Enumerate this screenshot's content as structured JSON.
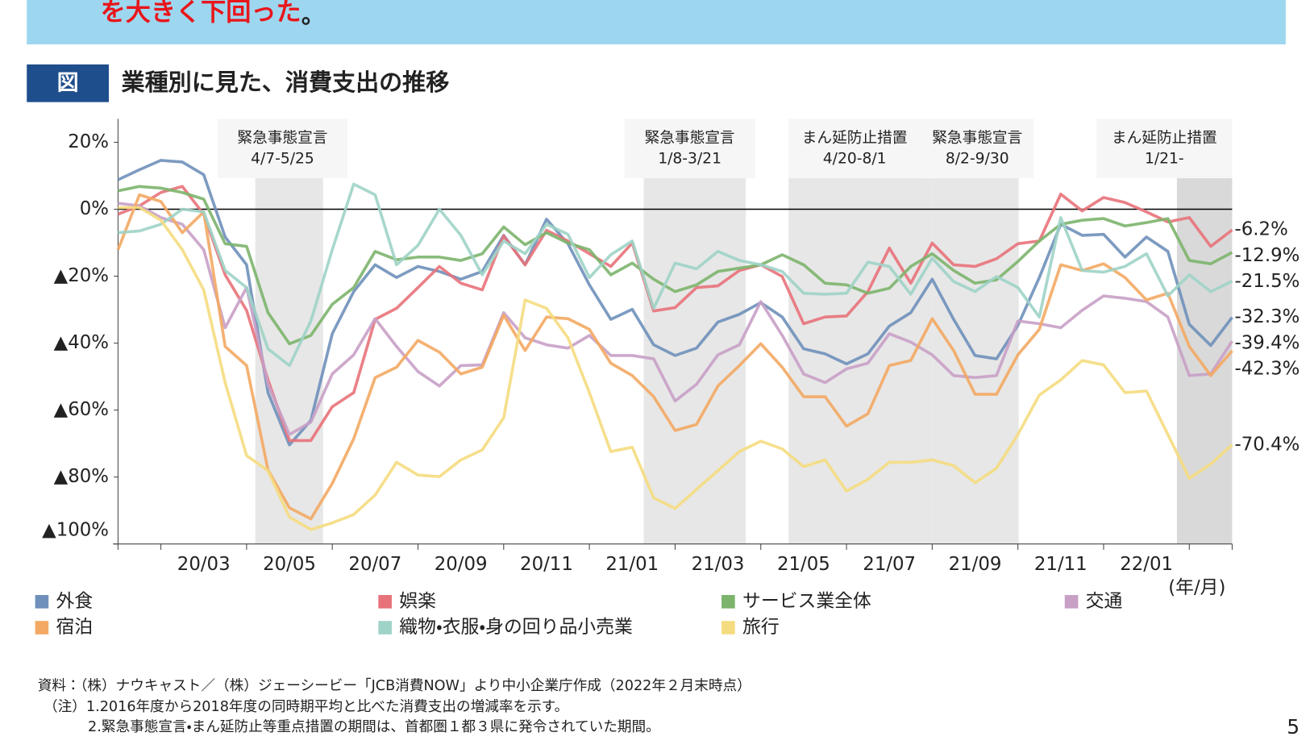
{
  "header": {
    "banner_text": "を大きく下回った",
    "banner_end": "。",
    "figure_label": "図"
  },
  "chart_data": {
    "type": "line",
    "title": "業種別に見た、消費支出の推移",
    "categories": [
      null,
      null,
      null,
      null,
      "20/03",
      null,
      null,
      null,
      "20/05",
      null,
      null,
      null,
      "20/07",
      null,
      null,
      null,
      "20/09",
      null,
      null,
      null,
      "20/11",
      null,
      null,
      null,
      "21/01",
      null,
      null,
      null,
      "21/03",
      null,
      null,
      null,
      "21/05",
      null,
      null,
      null,
      "21/07",
      null,
      null,
      null,
      "21/09",
      null,
      null,
      null,
      "21/11",
      null,
      null,
      null,
      "22/01",
      null,
      null,
      null,
      null
    ],
    "x_unit": "(年/月)",
    "ylim": [
      -100,
      27
    ],
    "yticks": [
      {
        "value": 20,
        "label": "20%"
      },
      {
        "value": 0,
        "label": "0%"
      },
      {
        "value": -20,
        "label": "▲20%"
      },
      {
        "value": -40,
        "label": "▲40%"
      },
      {
        "value": -60,
        "label": "▲60%"
      },
      {
        "value": -80,
        "label": "▲80%"
      },
      {
        "value": -100,
        "label": "▲100%"
      }
    ],
    "grid": false,
    "legend": "bottom",
    "periods": [
      {
        "label": "緊急事態宣言",
        "dates": "4/7-5/25"
      },
      {
        "label": "緊急事態宣言",
        "dates": "1/8-3/21"
      },
      {
        "label": "まん延防止措置",
        "dates": "4/20-8/1"
      },
      {
        "label": "緊急事態宣言",
        "dates": "8/2-9/30"
      },
      {
        "label": "まん延防止措置",
        "dates": "1/21-"
      }
    ],
    "series": [
      {
        "name": "外食",
        "color": "#6f90ba",
        "values": [
          8.8,
          11.8,
          14.6,
          14.1,
          10.3,
          -8.3,
          -16.6,
          -54.8,
          -70.4,
          -63.1,
          -37.2,
          -24.6,
          -16.6,
          -20.4,
          -17.1,
          -18.6,
          -20.9,
          -18.6,
          -7.8,
          -16.6,
          -3.0,
          -10.3,
          -22.6,
          -32.9,
          -29.9,
          -40.5,
          -43.7,
          -41.5,
          -33.7,
          -31.4,
          -27.9,
          -32.2,
          -41.7,
          -43.2,
          -46.2,
          -43.2,
          -34.9,
          -30.9,
          -20.9,
          -32.9,
          -43.7,
          -44.7,
          -34.7,
          -20.4,
          -4.5,
          -7.8,
          -7.5,
          -14.3,
          -8.3,
          -12.6,
          -34.4,
          -40.7,
          -32.3
        ],
        "value_labels": [
          null,
          null,
          null,
          null,
          null,
          null,
          null,
          null,
          null,
          null,
          null,
          null,
          null,
          null,
          null,
          null,
          null,
          null,
          null,
          null,
          null,
          null,
          null,
          null,
          null,
          null,
          null,
          null,
          null,
          null,
          null,
          null,
          null,
          null,
          null,
          null,
          null,
          null,
          null,
          null,
          null,
          null,
          null,
          null,
          null,
          null,
          null,
          null,
          null,
          null,
          null,
          null,
          "-32.3%"
        ]
      },
      {
        "name": "娯楽",
        "color": "#e8727a",
        "values": [
          -1.5,
          1,
          5,
          6.8,
          -1.5,
          -19.6,
          -30.2,
          -51,
          -69.1,
          -69.1,
          -59,
          -54.8,
          -32.9,
          -29.6,
          -23.4,
          -17.1,
          -22.1,
          -24.1,
          -8.0,
          -16.6,
          -6.3,
          -9.5,
          -13.3,
          -17.1,
          -10.1,
          -30.4,
          -29.4,
          -23.4,
          -22.9,
          -18.3,
          -16.6,
          -20.1,
          -34.2,
          -32.2,
          -31.9,
          -24.6,
          -11.6,
          -22.1,
          -10.1,
          -16.6,
          -17.1,
          -14.8,
          -10.3,
          -9.5,
          4.5,
          -0.5,
          3.5,
          2.0,
          -0.8,
          -3.8,
          -2.5,
          -11.1,
          -6.2
        ],
        "value_labels": [
          null,
          null,
          null,
          null,
          null,
          null,
          null,
          null,
          null,
          null,
          null,
          null,
          null,
          null,
          null,
          null,
          null,
          null,
          null,
          null,
          null,
          null,
          null,
          null,
          null,
          null,
          null,
          null,
          null,
          null,
          null,
          null,
          null,
          null,
          null,
          null,
          null,
          null,
          null,
          null,
          null,
          null,
          null,
          null,
          null,
          null,
          null,
          null,
          null,
          null,
          null,
          null,
          "-6.2%"
        ]
      },
      {
        "name": "サービス業全体",
        "color": "#7cb46c",
        "values": [
          5.5,
          6.8,
          6.3,
          5,
          3,
          -10.3,
          -11.1,
          -30.9,
          -40.2,
          -37.7,
          -28.4,
          -23.4,
          -12.6,
          -15.1,
          -14.3,
          -14.3,
          -15.3,
          -13.3,
          -5.3,
          -10.6,
          -7.0,
          -10.1,
          -12.1,
          -19.6,
          -16.1,
          -20.9,
          -24.6,
          -22.6,
          -18.6,
          -17.6,
          -16.6,
          -13.6,
          -16.6,
          -22.1,
          -22.6,
          -25.1,
          -23.6,
          -17.1,
          -13.3,
          -18.3,
          -22.1,
          -21.1,
          -15.6,
          -9.5,
          -4.5,
          -3.3,
          -2.8,
          -5.0,
          -4.0,
          -2.8,
          -15.3,
          -16.3,
          -12.9
        ],
        "value_labels": [
          null,
          null,
          null,
          null,
          null,
          null,
          null,
          null,
          null,
          null,
          null,
          null,
          null,
          null,
          null,
          null,
          null,
          null,
          null,
          null,
          null,
          null,
          null,
          null,
          null,
          null,
          null,
          null,
          null,
          null,
          null,
          null,
          null,
          null,
          null,
          null,
          null,
          null,
          null,
          null,
          null,
          null,
          null,
          null,
          null,
          null,
          null,
          null,
          null,
          null,
          null,
          null,
          "-12.9%"
        ]
      },
      {
        "name": "交通",
        "color": "#c8a0c6",
        "values": [
          1.8,
          1,
          -2.5,
          -4.5,
          -12.1,
          -35.4,
          -23.4,
          -52.3,
          -67.3,
          -63.6,
          -49.2,
          -43.5,
          -32.7,
          -41,
          -48.5,
          -52.8,
          -46.7,
          -46.5,
          -30.9,
          -38.4,
          -40.5,
          -41.5,
          -37.7,
          -43.7,
          -43.7,
          -44.7,
          -57.3,
          -52.3,
          -43.5,
          -40.5,
          -27.6,
          -37.7,
          -49.2,
          -51.8,
          -47.7,
          -46.0,
          -37.2,
          -39.7,
          -43.5,
          -49.7,
          -50.3,
          -49.7,
          -33.4,
          -34.2,
          -35.4,
          -30.2,
          -25.9,
          -26.6,
          -27.6,
          -32.2,
          -49.7,
          -49.2,
          -39.4
        ],
        "value_labels": [
          null,
          null,
          null,
          null,
          null,
          null,
          null,
          null,
          null,
          null,
          null,
          null,
          null,
          null,
          null,
          null,
          null,
          null,
          null,
          null,
          null,
          null,
          null,
          null,
          null,
          null,
          null,
          null,
          null,
          null,
          null,
          null,
          null,
          null,
          null,
          null,
          null,
          null,
          null,
          null,
          null,
          null,
          null,
          null,
          null,
          null,
          null,
          null,
          null,
          null,
          null,
          null,
          "-39.4%"
        ]
      },
      {
        "name": "宿泊",
        "color": "#f3a963",
        "values": [
          -12.1,
          4.3,
          2.3,
          -7,
          -0.8,
          -41,
          -46.7,
          -77.9,
          -89.2,
          -92.5,
          -81.9,
          -68.6,
          -50.3,
          -47.2,
          -39.2,
          -42.7,
          -49.2,
          -47.2,
          -31.7,
          -42.2,
          -32.2,
          -32.7,
          -35.9,
          -46,
          -49.7,
          -56,
          -66.1,
          -64.3,
          -52.8,
          -46.7,
          -40.2,
          -47.2,
          -56,
          -56,
          -64.8,
          -61.1,
          -46.7,
          -45.2,
          -32.7,
          -42.2,
          -55.3,
          -55.3,
          -43.5,
          -35.9,
          -16.6,
          -18.3,
          -16.3,
          -20.4,
          -27.1,
          -25.1,
          -41,
          -49.7,
          -42.3
        ],
        "value_labels": [
          null,
          null,
          null,
          null,
          null,
          null,
          null,
          null,
          null,
          null,
          null,
          null,
          null,
          null,
          null,
          null,
          null,
          null,
          null,
          null,
          null,
          null,
          null,
          null,
          null,
          null,
          null,
          null,
          null,
          null,
          null,
          null,
          null,
          null,
          null,
          null,
          null,
          null,
          null,
          null,
          null,
          null,
          null,
          null,
          null,
          null,
          null,
          null,
          null,
          null,
          null,
          null,
          "-42.3%"
        ]
      },
      {
        "name": "織物・衣服・身の回り品小売業",
        "color": "#9fd3c7",
        "values": [
          -7,
          -6.5,
          -4.5,
          0,
          -0.8,
          -18.3,
          -23.4,
          -41.7,
          -46.7,
          -33.4,
          -12.1,
          7.5,
          4.3,
          -16.6,
          -10.8,
          0,
          -7.8,
          -19.6,
          -9.5,
          -13.3,
          -4.5,
          -7.5,
          -20.4,
          -13.6,
          -9.5,
          -29.6,
          -16.1,
          -17.8,
          -12.6,
          -15.3,
          -16.6,
          -18.6,
          -25.1,
          -25.4,
          -25.1,
          -15.8,
          -17.1,
          -25.4,
          -14.6,
          -21.6,
          -24.6,
          -20.1,
          -23.4,
          -32.2,
          -2.5,
          -18.3,
          -18.8,
          -17.1,
          -13.3,
          -25.9,
          -19.6,
          -24.6,
          -21.5
        ],
        "value_labels": [
          null,
          null,
          null,
          null,
          null,
          null,
          null,
          null,
          null,
          null,
          null,
          null,
          null,
          null,
          null,
          null,
          null,
          null,
          null,
          null,
          null,
          null,
          null,
          null,
          null,
          null,
          null,
          null,
          null,
          null,
          null,
          null,
          null,
          null,
          null,
          null,
          null,
          null,
          null,
          null,
          null,
          null,
          null,
          null,
          null,
          null,
          null,
          null,
          null,
          null,
          null,
          null,
          "-21.5%"
        ]
      },
      {
        "name": "旅行",
        "color": "#f5dc80",
        "values": [
          0.5,
          0.5,
          -3.3,
          -12.1,
          -24.1,
          -51.8,
          -73.6,
          -78.1,
          -92,
          -95.7,
          -93.7,
          -91.2,
          -85.4,
          -75.6,
          -79.4,
          -79.9,
          -74.9,
          -71.9,
          -62.3,
          -27.1,
          -29.6,
          -38.4,
          -54.8,
          -72.4,
          -71.1,
          -86.2,
          -89.4,
          -83.7,
          -78.1,
          -72.4,
          -69.3,
          -71.6,
          -76.9,
          -74.9,
          -84.2,
          -80.7,
          -75.6,
          -75.6,
          -74.9,
          -76.6,
          -81.7,
          -77.4,
          -67.3,
          -55.5,
          -51,
          -45.2,
          -46.5,
          -54.8,
          -54.3,
          -67.3,
          -80.4,
          -76.1,
          -70.4
        ],
        "value_labels": [
          null,
          null,
          null,
          null,
          null,
          null,
          null,
          null,
          null,
          null,
          null,
          null,
          null,
          null,
          null,
          null,
          null,
          null,
          null,
          null,
          null,
          null,
          null,
          null,
          null,
          null,
          null,
          null,
          null,
          null,
          null,
          null,
          null,
          null,
          null,
          null,
          null,
          null,
          null,
          null,
          null,
          null,
          null,
          null,
          null,
          null,
          null,
          null,
          null,
          null,
          null,
          null,
          "-70.4%"
        ]
      }
    ]
  },
  "notes": [
    "資料：（株）ナウキャスト／（株）ジェーシービー「JCB消費NOW」より中小企業庁作成（2022年２月末時点）",
    "（注）1.2016年度から2018年度の同時期平均と比べた消費支出の増減率を示す。",
    "2.緊急事態宣言・まん延防止等重点措置の期間は、首都圏１都３県に発令されていた期間。"
  ],
  "page_number": "5"
}
